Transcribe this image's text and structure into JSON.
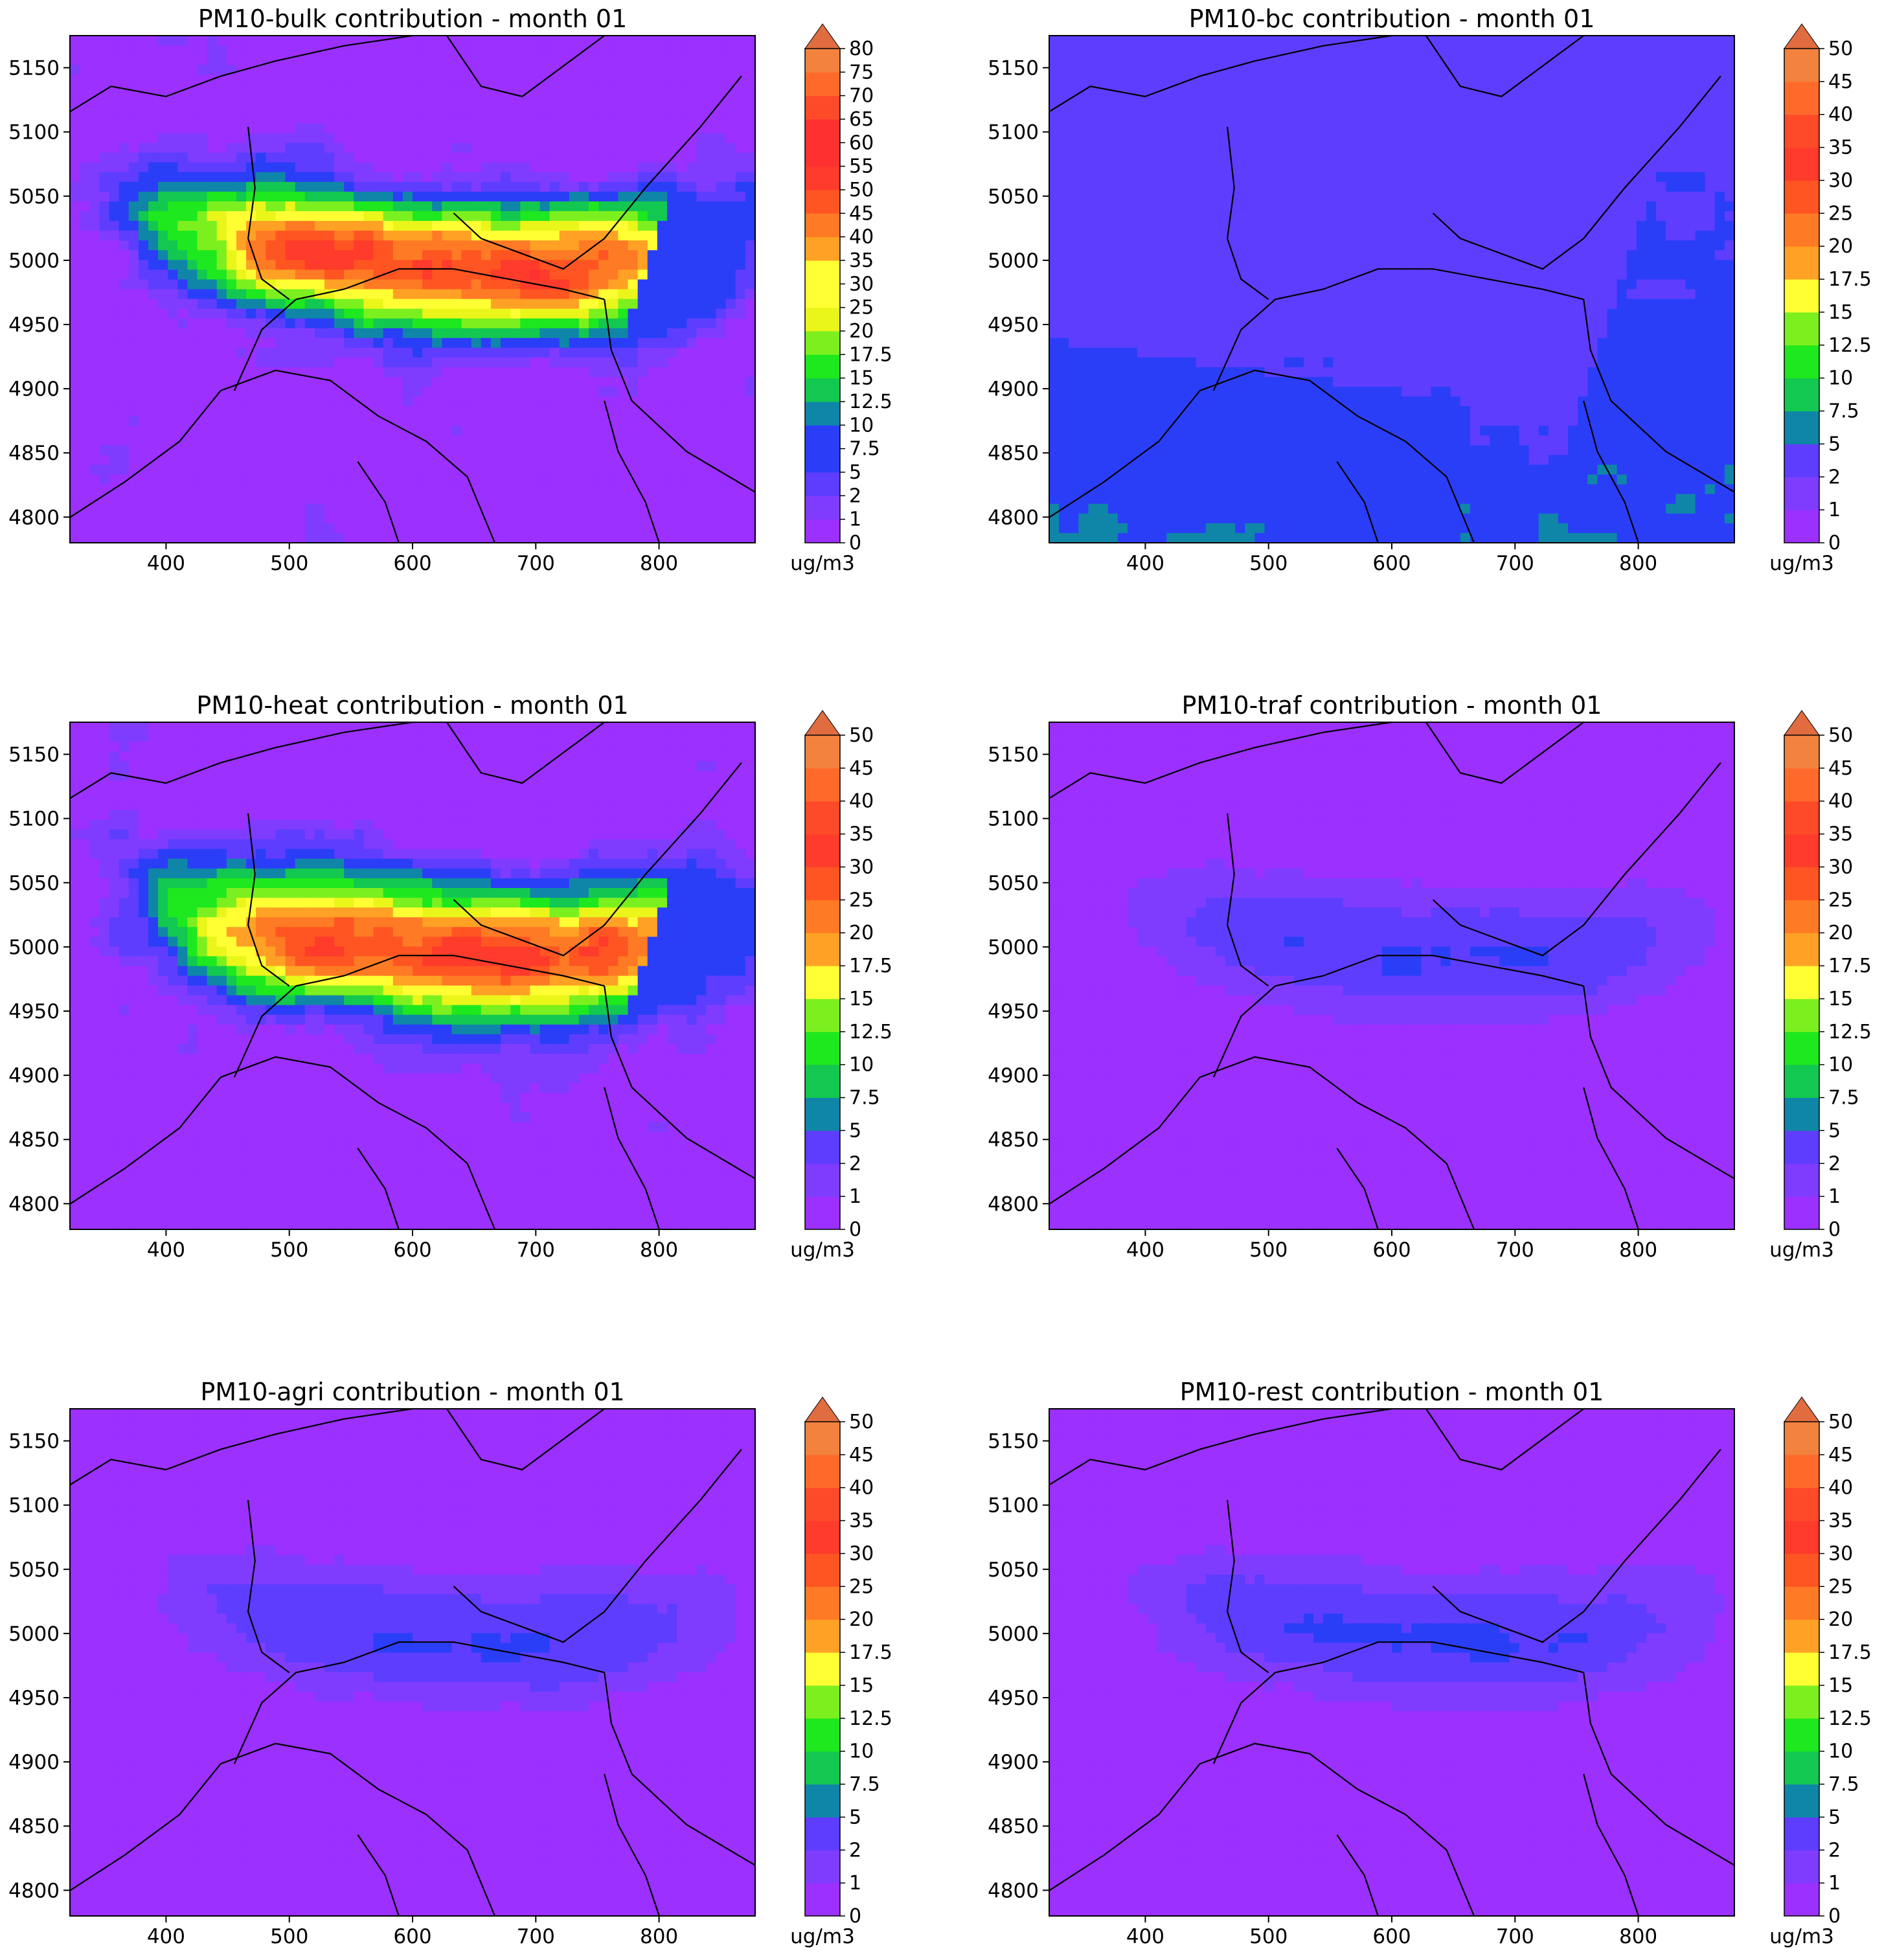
{
  "figure": {
    "shared": {
      "x_ticks": [
        400,
        500,
        600,
        700,
        800
      ],
      "y_ticks": [
        4800,
        4850,
        4900,
        4950,
        5000,
        5050,
        5100,
        5150
      ],
      "xlim": [
        322,
        878
      ],
      "ylim": [
        4780,
        5175
      ],
      "colorbar_unit": "ug/m3",
      "colormap": [
        "#9b30ff",
        "#7f3cff",
        "#5e3dff",
        "#2a3ef8",
        "#0f86a8",
        "#13c850",
        "#1ee81e",
        "#7cf01e",
        "#eaf51a",
        "#ffff33",
        "#ffa124",
        "#ff7a24",
        "#ff5522",
        "#ff3b2b",
        "#ff3030",
        "#ff4a2a",
        "#ff6a2a",
        "#f2823e",
        "#e06c40"
      ]
    },
    "chart_data": [
      {
        "type": "heatmap",
        "title": "PM10-bulk contribution - month 01",
        "colorbar_levels": [
          "0",
          "1",
          "2",
          "5",
          "7.5",
          "10",
          "12.5",
          "15",
          "17.5",
          "20",
          "25",
          "30",
          "35",
          "40",
          "45",
          "50",
          "55",
          "60",
          "65",
          "70",
          "75",
          "80"
        ],
        "extend": "max",
        "intensity": "high"
      },
      {
        "type": "heatmap",
        "title": "PM10-bc contribution - month 01",
        "colorbar_levels": [
          "0",
          "1",
          "2",
          "5",
          "7.5",
          "10",
          "12.5",
          "15",
          "17.5",
          "20",
          "25",
          "30",
          "35",
          "40",
          "45",
          "50"
        ],
        "extend": "max",
        "intensity": "background"
      },
      {
        "type": "heatmap",
        "title": "PM10-heat contribution - month 01",
        "colorbar_levels": [
          "0",
          "1",
          "2",
          "5",
          "7.5",
          "10",
          "12.5",
          "15",
          "17.5",
          "20",
          "25",
          "30",
          "35",
          "40",
          "45",
          "50"
        ],
        "extend": "max",
        "intensity": "high"
      },
      {
        "type": "heatmap",
        "title": "PM10-traf contribution - month 01",
        "colorbar_levels": [
          "0",
          "1",
          "2",
          "5",
          "7.5",
          "10",
          "12.5",
          "15",
          "17.5",
          "20",
          "25",
          "30",
          "35",
          "40",
          "45",
          "50"
        ],
        "extend": "max",
        "intensity": "low"
      },
      {
        "type": "heatmap",
        "title": "PM10-agri contribution - month 01",
        "colorbar_levels": [
          "0",
          "1",
          "2",
          "5",
          "7.5",
          "10",
          "12.5",
          "15",
          "17.5",
          "20",
          "25",
          "30",
          "35",
          "40",
          "45",
          "50"
        ],
        "extend": "max",
        "intensity": "low"
      },
      {
        "type": "heatmap",
        "title": "PM10-rest contribution - month 01",
        "colorbar_levels": [
          "0",
          "1",
          "2",
          "5",
          "7.5",
          "10",
          "12.5",
          "15",
          "17.5",
          "20",
          "25",
          "30",
          "35",
          "40",
          "45",
          "50"
        ],
        "extend": "max",
        "intensity": "low"
      }
    ]
  }
}
